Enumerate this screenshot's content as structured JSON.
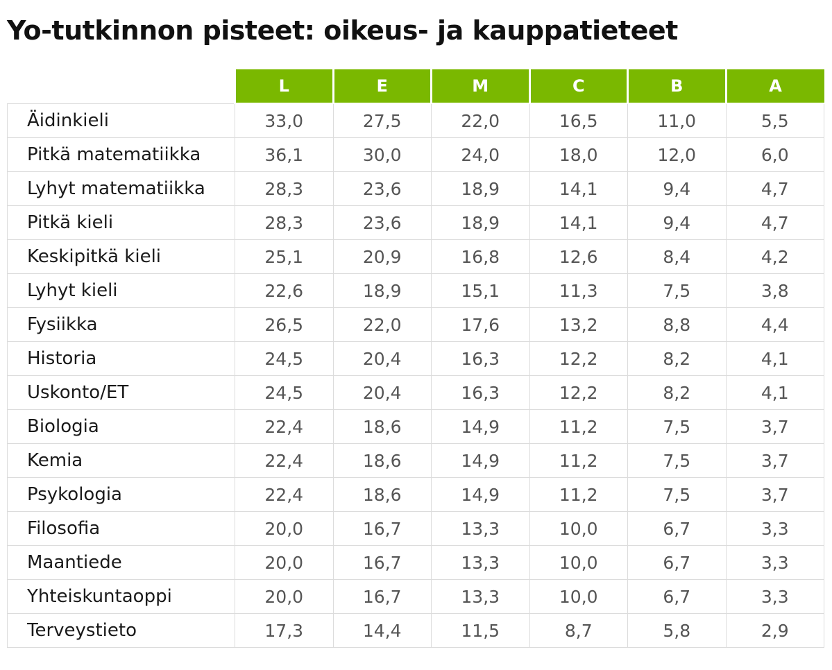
{
  "title": "Yo-tutkinnon pisteet: oikeus- ja kauppatieteet",
  "chart_data": {
    "type": "table",
    "columns": [
      "L",
      "E",
      "M",
      "C",
      "B",
      "A"
    ],
    "rows": [
      {
        "subject": "Äidinkieli",
        "values": [
          "33,0",
          "27,5",
          "22,0",
          "16,5",
          "11,0",
          "5,5"
        ]
      },
      {
        "subject": "Pitkä matematiikka",
        "values": [
          "36,1",
          "30,0",
          "24,0",
          "18,0",
          "12,0",
          "6,0"
        ]
      },
      {
        "subject": "Lyhyt matematiikka",
        "values": [
          "28,3",
          "23,6",
          "18,9",
          "14,1",
          "9,4",
          "4,7"
        ]
      },
      {
        "subject": "Pitkä kieli",
        "values": [
          "28,3",
          "23,6",
          "18,9",
          "14,1",
          "9,4",
          "4,7"
        ]
      },
      {
        "subject": "Keskipitkä kieli",
        "values": [
          "25,1",
          "20,9",
          "16,8",
          "12,6",
          "8,4",
          "4,2"
        ]
      },
      {
        "subject": "Lyhyt kieli",
        "values": [
          "22,6",
          "18,9",
          "15,1",
          "11,3",
          "7,5",
          "3,8"
        ]
      },
      {
        "subject": "Fysiikka",
        "values": [
          "26,5",
          "22,0",
          "17,6",
          "13,2",
          "8,8",
          "4,4"
        ]
      },
      {
        "subject": "Historia",
        "values": [
          "24,5",
          "20,4",
          "16,3",
          "12,2",
          "8,2",
          "4,1"
        ]
      },
      {
        "subject": "Uskonto/ET",
        "values": [
          "24,5",
          "20,4",
          "16,3",
          "12,2",
          "8,2",
          "4,1"
        ]
      },
      {
        "subject": "Biologia",
        "values": [
          "22,4",
          "18,6",
          "14,9",
          "11,2",
          "7,5",
          "3,7"
        ]
      },
      {
        "subject": "Kemia",
        "values": [
          "22,4",
          "18,6",
          "14,9",
          "11,2",
          "7,5",
          "3,7"
        ]
      },
      {
        "subject": "Psykologia",
        "values": [
          "22,4",
          "18,6",
          "14,9",
          "11,2",
          "7,5",
          "3,7"
        ]
      },
      {
        "subject": "Filosofia",
        "values": [
          "20,0",
          "16,7",
          "13,3",
          "10,0",
          "6,7",
          "3,3"
        ]
      },
      {
        "subject": "Maantiede",
        "values": [
          "20,0",
          "16,7",
          "13,3",
          "10,0",
          "6,7",
          "3,3"
        ]
      },
      {
        "subject": "Yhteiskuntaoppi",
        "values": [
          "20,0",
          "16,7",
          "13,3",
          "10,0",
          "6,7",
          "3,3"
        ]
      },
      {
        "subject": "Terveystieto",
        "values": [
          "17,3",
          "14,4",
          "11,5",
          "8,7",
          "5,8",
          "2,9"
        ]
      }
    ]
  },
  "colors": {
    "header_bg": "#7ab800",
    "header_text": "#ffffff",
    "grid": "#dcdcdc"
  }
}
